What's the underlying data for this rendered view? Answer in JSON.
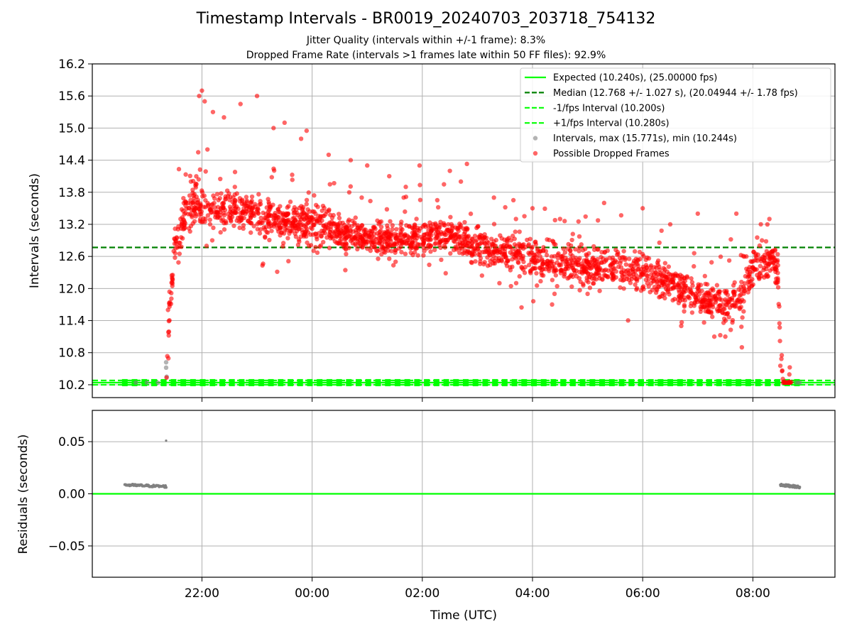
{
  "figure": {
    "title": "Timestamp Intervals - BR0019_20240703_203718_754132",
    "subtitle_1": "Jitter Quality (intervals within +/-1 frame): 8.3%",
    "subtitle_2": "Dropped Frame Rate (intervals >1 frames late within 50 FF files): 92.9%"
  },
  "colors": {
    "expected": "#00ff00",
    "median": "#008000",
    "interval_band": "#00ff00",
    "intervals": "#808080",
    "dropped": "#ff0000",
    "grid": "#b0b0b0"
  },
  "chart_data": [
    {
      "type": "scatter",
      "name": "intervals",
      "xlabel": "",
      "ylabel": "Intervals (seconds)",
      "x_unit": "hours since 00:00 UTC",
      "xlim": [
        -3.99,
        9.49
      ],
      "ylim": [
        9.96,
        16.2
      ],
      "yticks": [
        "10.2",
        "10.8",
        "11.4",
        "12.0",
        "12.6",
        "13.2",
        "13.8",
        "14.4",
        "15.0",
        "15.6",
        "16.2"
      ],
      "xticks": [
        {
          "x": -2,
          "label": "22:00"
        },
        {
          "x": 0,
          "label": "00:00"
        },
        {
          "x": 2,
          "label": "02:00"
        },
        {
          "x": 4,
          "label": "04:00"
        },
        {
          "x": 6,
          "label": "06:00"
        },
        {
          "x": 8,
          "label": "08:00"
        }
      ],
      "grid": true,
      "legend_position": "top-right",
      "legend": [
        {
          "label": "Expected (10.240s), (25.00000 fps)",
          "style": "solid",
          "color": "#00ff00"
        },
        {
          "label": "Median (12.768 +/- 1.027 s), (20.04944 +/- 1.78 fps)",
          "style": "dashed",
          "color": "#008000"
        },
        {
          "label": "-1/fps Interval (10.200s)",
          "style": "dashed",
          "color": "#00ff00"
        },
        {
          "label": "+1/fps Interval (10.280s)",
          "style": "dashed",
          "color": "#00ff00"
        },
        {
          "label": "Intervals, max (15.771s), min (10.244s)",
          "style": "dot",
          "color": "#808080"
        },
        {
          "label": "Possible Dropped Frames",
          "style": "dot",
          "color": "#ff0000"
        }
      ],
      "reference_lines": [
        {
          "name": "Expected",
          "y": 10.24
        },
        {
          "name": "Median",
          "y": 12.768
        },
        {
          "name": "-1/fps",
          "y": 10.2
        },
        {
          "name": "+1/fps",
          "y": 10.28
        }
      ],
      "ff_files": {
        "x_start": -3.4,
        "x_end": 8.8,
        "count": 70,
        "y": 10.24
      },
      "normal_intervals": [
        [
          -3.2,
          10.24
        ],
        [
          -3.0,
          10.24
        ],
        [
          -2.8,
          10.24
        ],
        [
          -2.65,
          10.62
        ],
        [
          -2.65,
          10.52
        ],
        [
          -2.64,
          10.35
        ],
        [
          8.8,
          10.24
        ],
        [
          8.85,
          10.24
        ]
      ],
      "dropped_profile": [
        {
          "x": -2.65,
          "y": 10.3,
          "spread": 0.05
        },
        {
          "x": -2.6,
          "y": 11.4,
          "spread": 0.3
        },
        {
          "x": -2.5,
          "y": 12.8,
          "spread": 0.3
        },
        {
          "x": -2.3,
          "y": 13.3,
          "spread": 0.35
        },
        {
          "x": -2.1,
          "y": 13.6,
          "spread": 0.45
        },
        {
          "x": -2.0,
          "y": 13.5,
          "spread": 0.3
        },
        {
          "x": -1.5,
          "y": 13.5,
          "spread": 0.3
        },
        {
          "x": -1.0,
          "y": 13.4,
          "spread": 0.3
        },
        {
          "x": -0.5,
          "y": 13.25,
          "spread": 0.3
        },
        {
          "x": 0.0,
          "y": 13.2,
          "spread": 0.3
        },
        {
          "x": 0.5,
          "y": 13.05,
          "spread": 0.25
        },
        {
          "x": 1.0,
          "y": 12.95,
          "spread": 0.25
        },
        {
          "x": 1.5,
          "y": 12.9,
          "spread": 0.25
        },
        {
          "x": 2.0,
          "y": 12.95,
          "spread": 0.25
        },
        {
          "x": 2.5,
          "y": 13.0,
          "spread": 0.25
        },
        {
          "x": 3.0,
          "y": 12.8,
          "spread": 0.25
        },
        {
          "x": 3.5,
          "y": 12.7,
          "spread": 0.25
        },
        {
          "x": 4.0,
          "y": 12.55,
          "spread": 0.3
        },
        {
          "x": 4.5,
          "y": 12.45,
          "spread": 0.3
        },
        {
          "x": 5.0,
          "y": 12.4,
          "spread": 0.3
        },
        {
          "x": 5.5,
          "y": 12.4,
          "spread": 0.3
        },
        {
          "x": 6.0,
          "y": 12.3,
          "spread": 0.3
        },
        {
          "x": 6.5,
          "y": 12.1,
          "spread": 0.3
        },
        {
          "x": 7.0,
          "y": 11.85,
          "spread": 0.3
        },
        {
          "x": 7.5,
          "y": 11.7,
          "spread": 0.3
        },
        {
          "x": 7.8,
          "y": 11.8,
          "spread": 0.35
        },
        {
          "x": 8.0,
          "y": 12.4,
          "spread": 0.35
        },
        {
          "x": 8.3,
          "y": 12.5,
          "spread": 0.3
        },
        {
          "x": 8.45,
          "y": 12.4,
          "spread": 0.3
        },
        {
          "x": 8.5,
          "y": 10.8,
          "spread": 0.3
        },
        {
          "x": 8.55,
          "y": 10.24,
          "spread": 0.02
        },
        {
          "x": 8.7,
          "y": 10.24,
          "spread": 0.02
        }
      ],
      "dropped_outliers": [
        [
          -2.0,
          15.7
        ],
        [
          -2.05,
          15.6
        ],
        [
          -1.95,
          15.5
        ],
        [
          -1.8,
          15.3
        ],
        [
          -1.6,
          15.2
        ],
        [
          -1.3,
          15.45
        ],
        [
          -1.0,
          15.6
        ],
        [
          -0.7,
          15.0
        ],
        [
          -0.5,
          15.1
        ],
        [
          -0.2,
          14.8
        ],
        [
          -0.1,
          14.95
        ],
        [
          0.3,
          14.5
        ],
        [
          0.7,
          14.4
        ],
        [
          1.0,
          14.3
        ],
        [
          1.4,
          14.1
        ],
        [
          1.95,
          14.3
        ],
        [
          2.5,
          14.2
        ],
        [
          2.7,
          14.0
        ],
        [
          3.3,
          13.7
        ],
        [
          4.0,
          13.5
        ],
        [
          5.3,
          13.6
        ],
        [
          6.0,
          13.5
        ],
        [
          7.0,
          13.4
        ],
        [
          7.7,
          13.4
        ],
        [
          8.3,
          13.3
        ],
        [
          -1.9,
          14.6
        ],
        [
          -2.2,
          14.0
        ],
        [
          0.9,
          13.7
        ],
        [
          1.7,
          13.9
        ],
        [
          3.7,
          13.3
        ],
        [
          4.5,
          13.3
        ],
        [
          6.5,
          13.2
        ],
        [
          7.3,
          11.1
        ],
        [
          7.5,
          11.1
        ],
        [
          7.8,
          10.9
        ],
        [
          6.7,
          11.3
        ],
        [
          5.0,
          11.9
        ],
        [
          3.4,
          12.1
        ],
        [
          4.4,
          11.9
        ]
      ]
    },
    {
      "type": "scatter",
      "name": "residuals",
      "xlabel": "Time (UTC)",
      "ylabel": "Residuals (seconds)",
      "xlim": [
        -3.99,
        9.49
      ],
      "ylim": [
        -0.08,
        0.08
      ],
      "yticks": [
        {
          "y": 0.05,
          "label": "0.05"
        },
        {
          "y": 0.0,
          "label": "0.00"
        },
        {
          "y": -0.05,
          "label": "−0.05"
        }
      ],
      "grid": true,
      "zero_line": 0.0,
      "residual_clusters": [
        {
          "x_start": -3.4,
          "x_end": -2.65,
          "y_start": 0.0085,
          "y_end": 0.007
        },
        {
          "x_start": 8.5,
          "x_end": 8.85,
          "y_start": 0.0085,
          "y_end": 0.0065
        }
      ],
      "residual_outliers": [
        [
          -2.65,
          0.051
        ]
      ]
    }
  ]
}
